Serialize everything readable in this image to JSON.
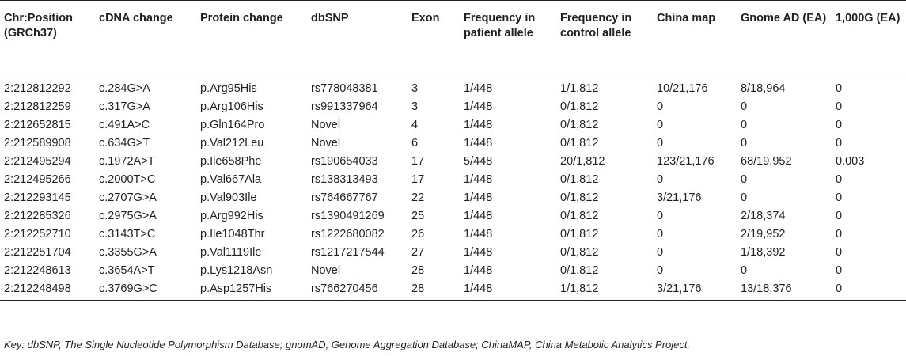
{
  "table": {
    "headers": [
      "Chr:Position (GRCh37)",
      "cDNA change",
      "Protein change",
      "dbSNP",
      "Exon",
      "Frequency in patient allele",
      "Frequency in control allele",
      "China map",
      "Gnome AD (EA)",
      "1,000G (EA)"
    ],
    "rows": [
      [
        "2:212812292",
        "c.284G>A",
        "p.Arg95His",
        "rs778048381",
        "3",
        "1/448",
        "1/1,812",
        "10/21,176",
        "8/18,964",
        "0"
      ],
      [
        "2:212812259",
        "c.317G>A",
        "p.Arg106His",
        "rs991337964",
        "3",
        "1/448",
        "0/1,812",
        "0",
        "0",
        "0"
      ],
      [
        "2:212652815",
        "c.491A>C",
        "p.Gln164Pro",
        "Novel",
        "4",
        "1/448",
        "0/1,812",
        "0",
        "0",
        "0"
      ],
      [
        "2:212589908",
        "c.634G>T",
        "p.Val212Leu",
        "Novel",
        "6",
        "1/448",
        "0/1,812",
        "0",
        "0",
        "0"
      ],
      [
        "2:212495294",
        "c.1972A>T",
        "p.Ile658Phe",
        "rs190654033",
        "17",
        "5/448",
        "20/1,812",
        "123/21,176",
        "68/19,952",
        "0.003"
      ],
      [
        "2:212495266",
        "c.2000T>C",
        "p.Val667Ala",
        "rs138313493",
        "17",
        "1/448",
        "0/1,812",
        "0",
        "0",
        "0"
      ],
      [
        "2:212293145",
        "c.2707G>A",
        "p.Val903Ile",
        "rs764667767",
        "22",
        "1/448",
        "0/1,812",
        "3/21,176",
        "0",
        "0"
      ],
      [
        "2:212285326",
        "c.2975G>A",
        "p.Arg992His",
        "rs1390491269",
        "25",
        "1/448",
        "0/1,812",
        "0",
        "2/18,374",
        "0"
      ],
      [
        "2:212252710",
        "c.3143T>C",
        "p.Ile1048Thr",
        "rs1222680082",
        "26",
        "1/448",
        "0/1,812",
        "0",
        "2/19,952",
        "0"
      ],
      [
        "2:212251704",
        "c.3355G>A",
        "p.Val1119Ile",
        "rs1217217544",
        "27",
        "1/448",
        "0/1,812",
        "0",
        "1/18,392",
        "0"
      ],
      [
        "2:212248613",
        "c.3654A>T",
        "p.Lys1218Asn",
        "Novel",
        "28",
        "1/448",
        "0/1,812",
        "0",
        "0",
        "0"
      ],
      [
        "2:212248498",
        "c.3769G>C",
        "p.Asp1257His",
        "rs766270456",
        "28",
        "1/448",
        "1/1,812",
        "3/21,176",
        "13/18,376",
        "0"
      ]
    ]
  },
  "footnote": "Key: dbSNP, The Single Nucleotide Polymorphism Database; gnomAD, Genome Aggregation Database; ChinaMAP, China Metabolic Analytics Project."
}
